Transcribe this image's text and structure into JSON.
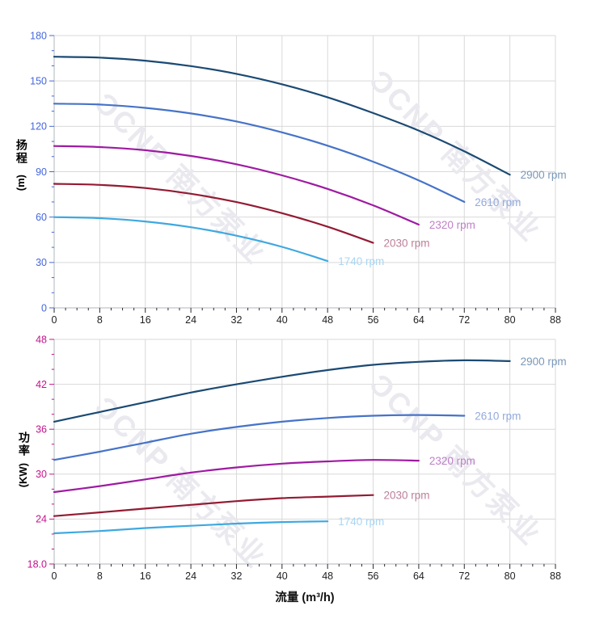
{
  "watermark": {
    "text": "ƆCNP 南方泵业",
    "color": "#e9e9ef"
  },
  "x_axis": {
    "title": "流量 (m³/h)",
    "range": [
      0,
      88
    ],
    "major_ticks": [
      0,
      8,
      16,
      24,
      32,
      40,
      48,
      56,
      64,
      72,
      80,
      88
    ],
    "minor_step": 2,
    "tick_color": "#2a2a2a",
    "label_color": "#1f1f1f"
  },
  "grid": {
    "color": "#d9d9d9",
    "axis_line_color": "#bfc3c9"
  },
  "chart_data": [
    {
      "type": "line",
      "id": "head",
      "ylabel": "扬程 (m)",
      "ylabel_cjk": "扬程",
      "ylabel_unit": "(m)",
      "axis_color": "#4466dd",
      "ylim": [
        0,
        180
      ],
      "y_major_ticks": [
        0,
        30,
        60,
        90,
        120,
        150,
        180
      ],
      "y_tick_labels": [
        "0",
        "30",
        "60",
        "90",
        "120",
        "150",
        "180"
      ],
      "y_minor_step": 10,
      "grid": true,
      "legend_position": "at-line-end",
      "series": [
        {
          "name": "2900 rpm",
          "color": "#1b4a73",
          "label_color": "#7a98b8",
          "x": [
            0,
            8,
            16,
            24,
            32,
            40,
            48,
            56,
            64,
            72,
            80
          ],
          "y": [
            166,
            165.4,
            163.4,
            159.8,
            154.7,
            147.8,
            139.2,
            128.8,
            117.2,
            103.5,
            88
          ]
        },
        {
          "name": "2610 rpm",
          "color": "#4673c8",
          "label_color": "#93aadc",
          "x": [
            0,
            8,
            16,
            24,
            32,
            40,
            48,
            56,
            64,
            72
          ],
          "y": [
            135,
            134.4,
            132.2,
            128.5,
            123.2,
            116,
            107.2,
            96.6,
            84.3,
            70
          ]
        },
        {
          "name": "2320 rpm",
          "color": "#9e1ba2",
          "label_color": "#c07fc8",
          "x": [
            0,
            8,
            16,
            24,
            32,
            40,
            48,
            56,
            64
          ],
          "y": [
            107,
            106.3,
            104.2,
            100.4,
            94.9,
            87.6,
            78.6,
            67.8,
            55
          ]
        },
        {
          "name": "2030 rpm",
          "color": "#931b33",
          "label_color": "#bc8099",
          "x": [
            0,
            8,
            16,
            24,
            32,
            40,
            48,
            56
          ],
          "y": [
            82,
            81.3,
            79.2,
            75.4,
            69.9,
            62.6,
            53.6,
            43
          ]
        },
        {
          "name": "1740 rpm",
          "color": "#3fa8e0",
          "label_color": "#a9d6f3",
          "x": [
            0,
            8,
            16,
            24,
            32,
            40,
            48
          ],
          "y": [
            60,
            59.3,
            57.1,
            53.3,
            47.7,
            40.3,
            31
          ]
        }
      ]
    },
    {
      "type": "line",
      "id": "power",
      "ylabel": "功率 (KW)",
      "ylabel_cjk": "功率",
      "ylabel_unit": "(KW)",
      "axis_color": "#c4138e",
      "ylim": [
        18,
        48
      ],
      "y_major_ticks": [
        18,
        24,
        30,
        36,
        42,
        48
      ],
      "y_tick_labels": [
        "18.0",
        "24",
        "30",
        "36",
        "42",
        "48"
      ],
      "y_minor_step": 2,
      "grid": true,
      "legend_position": "at-line-end",
      "series": [
        {
          "name": "2900 rpm",
          "color": "#1b4a73",
          "label_color": "#7a98b8",
          "x": [
            0,
            8,
            16,
            24,
            32,
            40,
            48,
            56,
            64,
            72,
            80
          ],
          "y": [
            37,
            38.3,
            39.6,
            40.9,
            42,
            43,
            43.9,
            44.6,
            45,
            45.2,
            45.1
          ]
        },
        {
          "name": "2610 rpm",
          "color": "#4673c8",
          "label_color": "#93aadc",
          "x": [
            0,
            8,
            16,
            24,
            32,
            40,
            48,
            56,
            64,
            72
          ],
          "y": [
            31.9,
            33,
            34.2,
            35.4,
            36.3,
            37,
            37.5,
            37.8,
            37.9,
            37.8
          ]
        },
        {
          "name": "2320 rpm",
          "color": "#9e1ba2",
          "label_color": "#c07fc8",
          "x": [
            0,
            8,
            16,
            24,
            32,
            40,
            48,
            56,
            64
          ],
          "y": [
            27.6,
            28.4,
            29.3,
            30.2,
            30.9,
            31.4,
            31.7,
            31.9,
            31.8
          ]
        },
        {
          "name": "2030 rpm",
          "color": "#931b33",
          "label_color": "#bc8099",
          "x": [
            0,
            8,
            16,
            24,
            32,
            40,
            48,
            56
          ],
          "y": [
            24.4,
            24.9,
            25.4,
            25.9,
            26.4,
            26.8,
            27,
            27.2
          ]
        },
        {
          "name": "1740 rpm",
          "color": "#3fa8e0",
          "label_color": "#a9d6f3",
          "x": [
            0,
            8,
            16,
            24,
            32,
            40,
            48
          ],
          "y": [
            22.1,
            22.4,
            22.8,
            23.1,
            23.4,
            23.6,
            23.7
          ]
        }
      ]
    }
  ]
}
